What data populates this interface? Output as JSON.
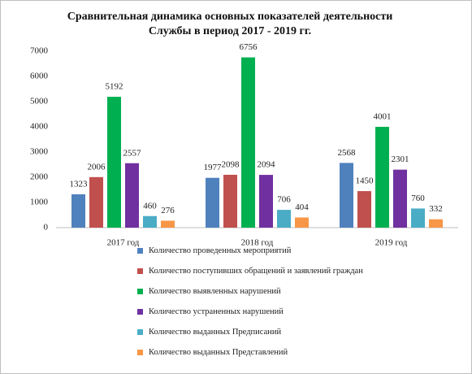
{
  "chart_data": {
    "type": "bar",
    "title_lines": [
      "Сравнительная динамика основных показателей деятельности",
      "Службы в период 2017 - 2019 гг."
    ],
    "categories": [
      "2017 год",
      "2018 год",
      "2019 год"
    ],
    "series": [
      {
        "name": "Количество проведенных мероприятий",
        "color": "#4f81bd",
        "values": [
          1323,
          1977,
          2568
        ]
      },
      {
        "name": "Количество поступивших обращений и заявлений граждан",
        "color": "#c0504d",
        "values": [
          2006,
          2098,
          1450
        ]
      },
      {
        "name": "Количество выявленных нарушений",
        "color": "#00b050",
        "values": [
          5192,
          6756,
          4001
        ]
      },
      {
        "name": "Количество устраненных нарушений",
        "color": "#7030a0",
        "values": [
          2557,
          2094,
          2301
        ]
      },
      {
        "name": "Количество выданных Предписаний",
        "color": "#4bacc6",
        "values": [
          460,
          706,
          760
        ]
      },
      {
        "name": "Количество выданных Представлений",
        "color": "#f79646",
        "values": [
          276,
          404,
          332
        ]
      }
    ],
    "ylim": [
      0,
      7000
    ],
    "yticks": [
      0,
      1000,
      2000,
      3000,
      4000,
      5000,
      6000,
      7000
    ],
    "grid": false,
    "legend": "bottom"
  }
}
